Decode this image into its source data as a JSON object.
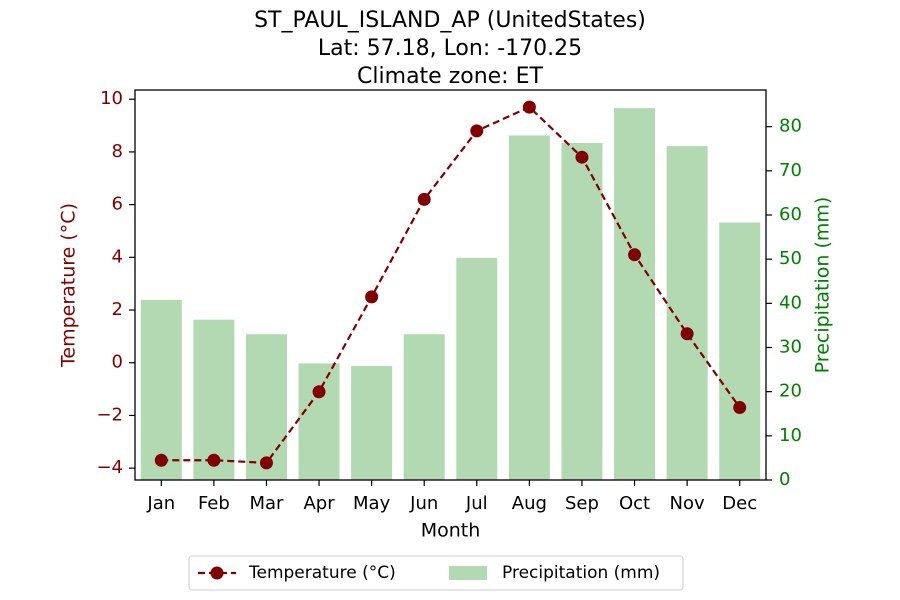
{
  "chart_data": {
    "type": "bar+line",
    "title_lines": [
      "ST_PAUL_ISLAND_AP (UnitedStates)",
      "Lat: 57.18, Lon: -170.25",
      "Climate zone: ET"
    ],
    "xlabel": "Month",
    "ylabel_left": "Temperature (°C)",
    "ylabel_right": "Precipitation (mm)",
    "categories": [
      "Jan",
      "Feb",
      "Mar",
      "Apr",
      "May",
      "Jun",
      "Jul",
      "Aug",
      "Sep",
      "Oct",
      "Nov",
      "Dec"
    ],
    "temperature": {
      "name": "Temperature (°C)",
      "values": [
        -3.7,
        -3.7,
        -3.8,
        -1.1,
        2.5,
        6.2,
        8.8,
        9.7,
        7.8,
        4.1,
        1.1,
        -1.7
      ],
      "color": "#800000"
    },
    "precipitation": {
      "name": "Precipitation (mm)",
      "values": [
        40.8,
        36.3,
        33.0,
        26.4,
        25.8,
        33.0,
        50.3,
        78.0,
        76.3,
        84.2,
        75.6,
        58.3
      ],
      "color": "#b3d9b3"
    },
    "ylim_left": [
      -4.45,
      10.35
    ],
    "yticks_left": [
      -4,
      -2,
      0,
      2,
      4,
      6,
      8,
      10
    ],
    "ylim_right": [
      0,
      88.3
    ],
    "yticks_right": [
      0,
      10,
      20,
      30,
      40,
      50,
      60,
      70,
      80
    ],
    "left_axis_color": "#800000",
    "right_axis_color": "#008000",
    "legend_position": "bottom-center",
    "grid": false
  }
}
